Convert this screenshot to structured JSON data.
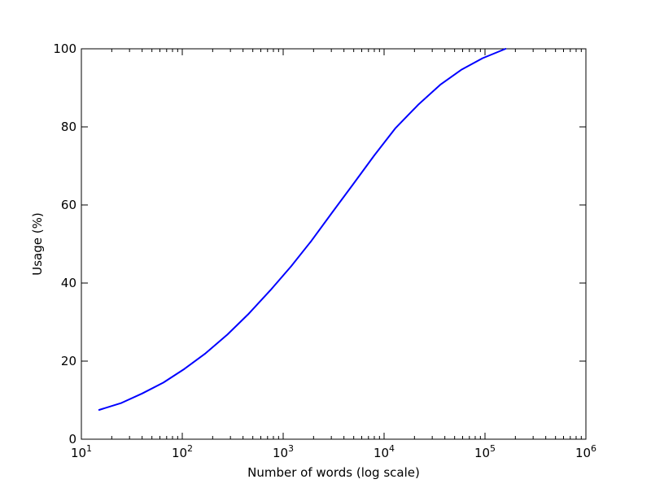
{
  "chart_data": {
    "type": "line",
    "title": "",
    "xlabel": "Number of words (log scale)",
    "ylabel": "Usage (%)",
    "xscale": "log",
    "xlim": [
      10,
      1000000
    ],
    "ylim": [
      0,
      100
    ],
    "grid": false,
    "legend": "none",
    "x_ticks": [
      {
        "value": 10,
        "base": "10",
        "exp": "1"
      },
      {
        "value": 100,
        "base": "10",
        "exp": "2"
      },
      {
        "value": 1000,
        "base": "10",
        "exp": "3"
      },
      {
        "value": 10000,
        "base": "10",
        "exp": "4"
      },
      {
        "value": 100000,
        "base": "10",
        "exp": "5"
      },
      {
        "value": 1000000,
        "base": "10",
        "exp": "6"
      }
    ],
    "y_ticks": [
      0,
      20,
      40,
      60,
      80,
      100
    ],
    "series": [
      {
        "color": "#0000ff",
        "x": [
          15,
          25,
          40,
          65,
          105,
          170,
          280,
          450,
          750,
          1200,
          1900,
          3000,
          4900,
          8000,
          13000,
          22000,
          36000,
          58000,
          95000,
          160000
        ],
        "y": [
          7.5,
          9.3,
          11.7,
          14.5,
          18.0,
          22.0,
          26.8,
          32.0,
          38.2,
          44.3,
          50.8,
          57.8,
          65.2,
          72.7,
          79.7,
          85.8,
          90.8,
          94.6,
          97.6,
          100.0
        ]
      }
    ]
  }
}
